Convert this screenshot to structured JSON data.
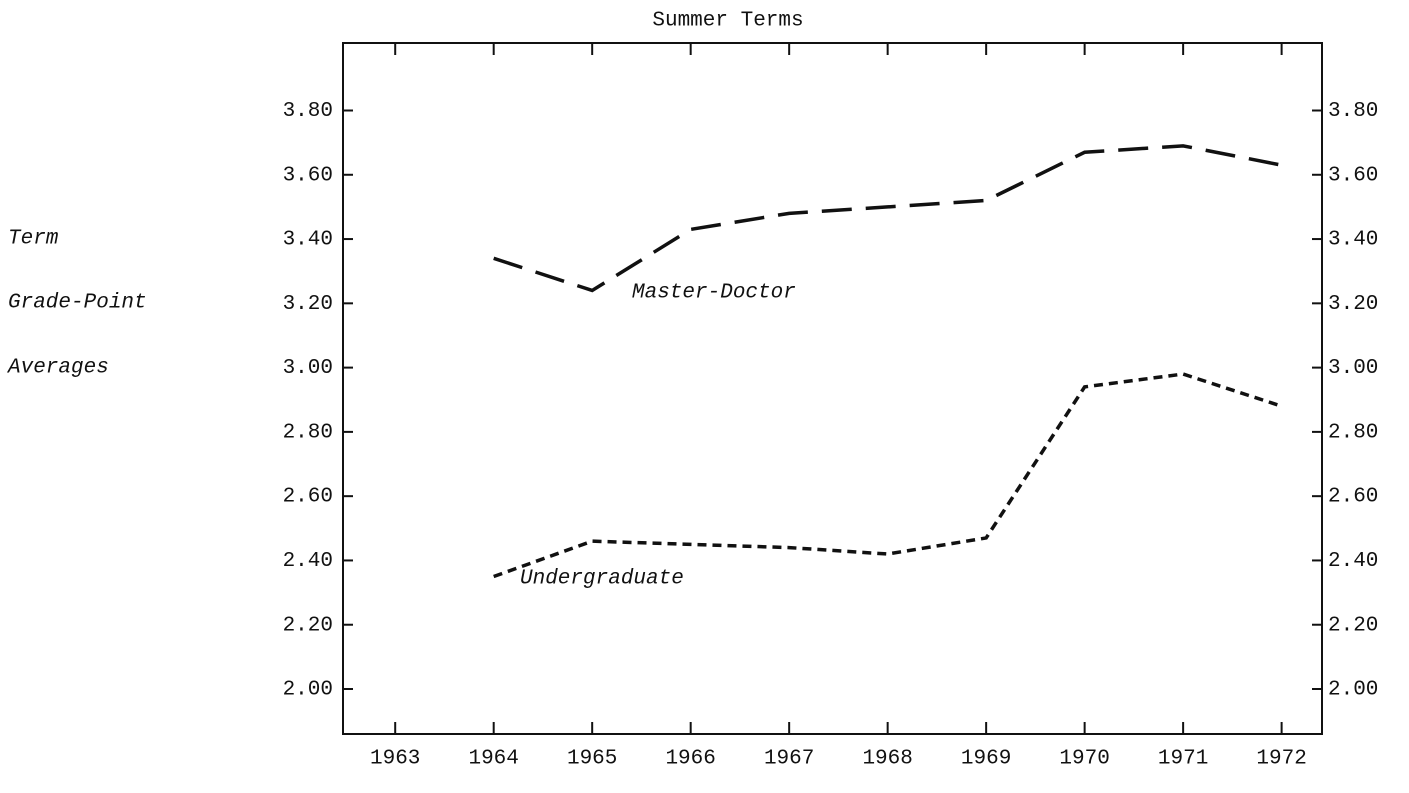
{
  "chart_data": {
    "type": "line",
    "title": "Summer Terms",
    "ylabel": [
      "Term",
      "Grade-Point",
      "Averages"
    ],
    "x": [
      1964,
      1965,
      1966,
      1967,
      1968,
      1969,
      1970,
      1971,
      1972
    ],
    "series": [
      {
        "name": "Master-Doctor",
        "color": "#111111",
        "dash": "long",
        "values": [
          3.34,
          3.24,
          3.43,
          3.48,
          3.5,
          3.52,
          3.67,
          3.69,
          3.63
        ]
      },
      {
        "name": "Undergraduate",
        "color": "#111111",
        "dash": "short",
        "values": [
          2.35,
          2.46,
          2.45,
          2.44,
          2.42,
          2.47,
          2.94,
          2.98,
          2.88
        ]
      }
    ],
    "xlim": [
      1962.47,
      1972.41
    ],
    "xticks": [
      1963,
      1964,
      1965,
      1966,
      1967,
      1968,
      1969,
      1970,
      1971,
      1972
    ],
    "ylim": [
      1.86,
      4.01
    ],
    "yticks": [
      {
        "value": 2.0,
        "label": "2.00"
      },
      {
        "value": 2.2,
        "label": "2.20"
      },
      {
        "value": 2.4,
        "label": "2.40"
      },
      {
        "value": 2.6,
        "label": "2.60"
      },
      {
        "value": 2.8,
        "label": "2.80"
      },
      {
        "value": 3.0,
        "label": "3.00"
      },
      {
        "value": 3.2,
        "label": "3.20"
      },
      {
        "value": 3.4,
        "label": "3.40"
      },
      {
        "value": 3.6,
        "label": "3.60"
      },
      {
        "value": 3.8,
        "label": "3.80"
      }
    ],
    "right_axis_labels": true,
    "grid": false
  }
}
